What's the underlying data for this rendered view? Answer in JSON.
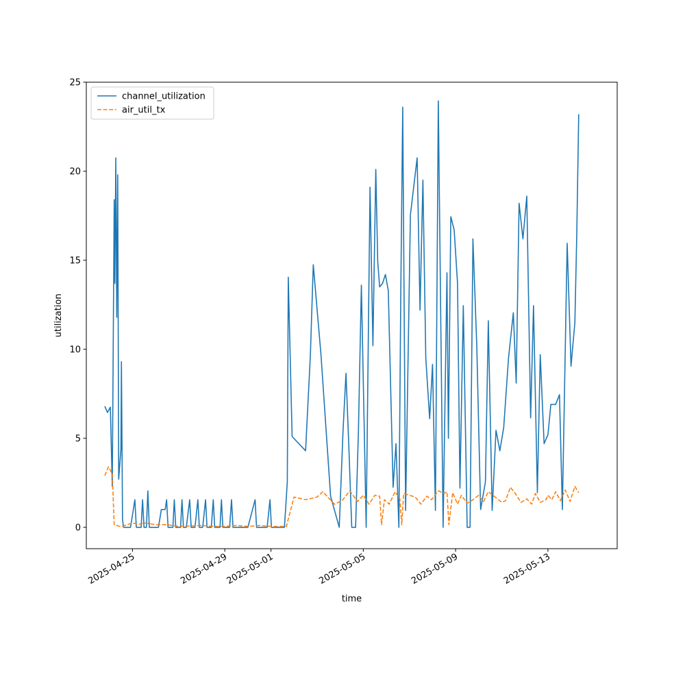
{
  "chart_data": {
    "type": "line",
    "title": "",
    "xlabel": "time",
    "ylabel": "utilization",
    "x_axis_type": "date",
    "xlim": [
      "2025-04-23T00:00",
      "2025-05-16T00:00"
    ],
    "ylim": [
      -1.2,
      25.0
    ],
    "yticks": [
      0,
      5,
      10,
      15,
      20,
      25
    ],
    "xticks": [
      "2025-04-25",
      "2025-04-29",
      "2025-05-01",
      "2025-05-05",
      "2025-05-09",
      "2025-05-13"
    ],
    "grid": false,
    "legend_position": "upper-left",
    "series": [
      {
        "name": "channel_utilization",
        "color": "#1f77b4",
        "dash": "solid",
        "points": [
          [
            "2025-04-23T19:12",
            6.8
          ],
          [
            "2025-04-23T22:00",
            6.45
          ],
          [
            "2025-04-24T01:00",
            6.75
          ],
          [
            "2025-04-24T03:00",
            2.3
          ],
          [
            "2025-04-24T05:00",
            18.4
          ],
          [
            "2025-04-24T05:40",
            13.7
          ],
          [
            "2025-04-24T06:40",
            20.75
          ],
          [
            "2025-04-24T07:40",
            11.8
          ],
          [
            "2025-04-24T08:40",
            19.8
          ],
          [
            "2025-04-24T09:40",
            2.7
          ],
          [
            "2025-04-24T12:00",
            4.4
          ],
          [
            "2025-04-24T12:30",
            9.3
          ],
          [
            "2025-04-24T13:40",
            0.45
          ],
          [
            "2025-04-24T14:40",
            0.0
          ],
          [
            "2025-04-24T20:00",
            0.0
          ],
          [
            "2025-04-24T22:00",
            0.0
          ],
          [
            "2025-04-25T02:30",
            1.55
          ],
          [
            "2025-04-25T04:00",
            0.0
          ],
          [
            "2025-04-25T09:00",
            0.0
          ],
          [
            "2025-04-25T10:30",
            1.55
          ],
          [
            "2025-04-25T12:00",
            0.0
          ],
          [
            "2025-04-25T14:30",
            0.0
          ],
          [
            "2025-04-25T16:00",
            2.05
          ],
          [
            "2025-04-25T17:30",
            0.0
          ],
          [
            "2025-04-26T03:00",
            0.0
          ],
          [
            "2025-04-26T06:00",
            1.0
          ],
          [
            "2025-04-26T10:00",
            1.0
          ],
          [
            "2025-04-26T11:30",
            1.55
          ],
          [
            "2025-04-26T13:00",
            0.0
          ],
          [
            "2025-04-26T18:00",
            0.0
          ],
          [
            "2025-04-26T19:30",
            1.55
          ],
          [
            "2025-04-26T21:00",
            0.0
          ],
          [
            "2025-04-27T02:00",
            0.0
          ],
          [
            "2025-04-27T03:30",
            1.55
          ],
          [
            "2025-04-27T05:00",
            0.0
          ],
          [
            "2025-04-27T08:00",
            0.0
          ],
          [
            "2025-04-27T11:30",
            1.55
          ],
          [
            "2025-04-27T13:00",
            0.0
          ],
          [
            "2025-04-27T17:00",
            0.0
          ],
          [
            "2025-04-27T20:00",
            1.55
          ],
          [
            "2025-04-27T21:30",
            0.0
          ],
          [
            "2025-04-28T01:00",
            0.0
          ],
          [
            "2025-04-28T04:00",
            1.55
          ],
          [
            "2025-04-28T05:30",
            0.0
          ],
          [
            "2025-04-28T10:00",
            0.0
          ],
          [
            "2025-04-28T12:00",
            1.55
          ],
          [
            "2025-04-28T13:30",
            0.0
          ],
          [
            "2025-04-28T19:00",
            0.0
          ],
          [
            "2025-04-28T20:30",
            1.55
          ],
          [
            "2025-04-28T22:00",
            0.0
          ],
          [
            "2025-04-29T05:00",
            0.0
          ],
          [
            "2025-04-29T07:00",
            1.55
          ],
          [
            "2025-04-29T08:30",
            0.0
          ],
          [
            "2025-04-29T13:00",
            0.0
          ],
          [
            "2025-04-29T16:00",
            0.0
          ],
          [
            "2025-04-29T19:00",
            0.0
          ],
          [
            "2025-04-30T00:00",
            0.0
          ],
          [
            "2025-04-30T07:30",
            1.55
          ],
          [
            "2025-04-30T09:00",
            0.0
          ],
          [
            "2025-04-30T15:00",
            0.0
          ],
          [
            "2025-04-30T20:00",
            0.0
          ],
          [
            "2025-04-30T23:00",
            1.55
          ],
          [
            "2025-05-01T00:30",
            0.0
          ],
          [
            "2025-05-01T14:00",
            0.0
          ],
          [
            "2025-05-01T17:00",
            2.55
          ],
          [
            "2025-05-01T18:00",
            14.05
          ],
          [
            "2025-05-01T19:30",
            10.7
          ],
          [
            "2025-05-01T22:00",
            5.1
          ],
          [
            "2025-05-02T12:00",
            4.3
          ],
          [
            "2025-05-02T17:00",
            9.7
          ],
          [
            "2025-05-02T20:00",
            14.75
          ],
          [
            "2025-05-03T04:00",
            9.7
          ],
          [
            "2025-05-03T14:00",
            1.75
          ],
          [
            "2025-05-03T23:00",
            0.0
          ],
          [
            "2025-05-04T03:00",
            5.5
          ],
          [
            "2025-05-04T06:00",
            8.65
          ],
          [
            "2025-05-04T09:00",
            4.5
          ],
          [
            "2025-05-04T12:00",
            0.0
          ],
          [
            "2025-05-04T16:00",
            0.0
          ],
          [
            "2025-05-04T19:00",
            5.5
          ],
          [
            "2025-05-04T22:00",
            13.6
          ],
          [
            "2025-05-05T01:00",
            5.5
          ],
          [
            "2025-05-05T03:00",
            0.0
          ],
          [
            "2025-05-05T07:00",
            19.1
          ],
          [
            "2025-05-05T10:00",
            10.2
          ],
          [
            "2025-05-05T13:00",
            20.1
          ],
          [
            "2025-05-05T15:00",
            14.95
          ],
          [
            "2025-05-05T17:00",
            13.5
          ],
          [
            "2025-05-05T20:00",
            13.7
          ],
          [
            "2025-05-05T23:00",
            14.2
          ],
          [
            "2025-05-06T02:00",
            13.3
          ],
          [
            "2025-05-06T07:00",
            2.25
          ],
          [
            "2025-05-06T10:00",
            4.7
          ],
          [
            "2025-05-06T13:00",
            0.0
          ],
          [
            "2025-05-06T15:00",
            13.2
          ],
          [
            "2025-05-06T17:00",
            23.6
          ],
          [
            "2025-05-06T20:00",
            0.95
          ],
          [
            "2025-05-07T01:00",
            17.55
          ],
          [
            "2025-05-07T08:00",
            20.75
          ],
          [
            "2025-05-07T11:00",
            12.2
          ],
          [
            "2025-05-07T14:00",
            19.5
          ],
          [
            "2025-05-07T17:00",
            9.5
          ],
          [
            "2025-05-07T21:00",
            6.1
          ],
          [
            "2025-05-08T00:00",
            9.15
          ],
          [
            "2025-05-08T03:00",
            0.95
          ],
          [
            "2025-05-08T06:00",
            23.95
          ],
          [
            "2025-05-08T11:00",
            0.0
          ],
          [
            "2025-05-08T15:00",
            14.3
          ],
          [
            "2025-05-08T16:30",
            5.0
          ],
          [
            "2025-05-08T19:00",
            17.45
          ],
          [
            "2025-05-08T22:30",
            16.7
          ],
          [
            "2025-05-09T02:00",
            13.7
          ],
          [
            "2025-05-09T04:30",
            2.2
          ],
          [
            "2025-05-09T08:00",
            12.45
          ],
          [
            "2025-05-09T12:00",
            0.0
          ],
          [
            "2025-05-09T15:00",
            0.0
          ],
          [
            "2025-05-09T18:00",
            16.2
          ],
          [
            "2025-05-09T22:00",
            10.2
          ],
          [
            "2025-05-10T02:00",
            1.0
          ],
          [
            "2025-05-10T07:00",
            2.55
          ],
          [
            "2025-05-10T10:00",
            11.6
          ],
          [
            "2025-05-10T14:00",
            0.95
          ],
          [
            "2025-05-10T18:00",
            5.45
          ],
          [
            "2025-05-10T22:00",
            4.3
          ],
          [
            "2025-05-11T02:00",
            5.6
          ],
          [
            "2025-05-11T07:00",
            9.5
          ],
          [
            "2025-05-11T12:00",
            12.05
          ],
          [
            "2025-05-11T15:00",
            8.1
          ],
          [
            "2025-05-11T18:00",
            18.2
          ],
          [
            "2025-05-11T22:00",
            16.2
          ],
          [
            "2025-05-12T02:00",
            18.6
          ],
          [
            "2025-05-12T06:00",
            6.15
          ],
          [
            "2025-05-12T09:00",
            12.45
          ],
          [
            "2025-05-12T13:00",
            1.95
          ],
          [
            "2025-05-12T16:00",
            9.7
          ],
          [
            "2025-05-12T20:00",
            4.7
          ],
          [
            "2025-05-13T00:00",
            5.2
          ],
          [
            "2025-05-13T03:00",
            6.9
          ],
          [
            "2025-05-13T08:00",
            6.9
          ],
          [
            "2025-05-13T12:00",
            7.45
          ],
          [
            "2025-05-13T15:00",
            1.0
          ],
          [
            "2025-05-13T20:00",
            15.95
          ],
          [
            "2025-05-14T00:00",
            9.05
          ],
          [
            "2025-05-14T04:00",
            11.5
          ],
          [
            "2025-05-14T06:00",
            16.5
          ],
          [
            "2025-05-14T08:00",
            23.2
          ]
        ]
      },
      {
        "name": "air_util_tx",
        "color": "#ff7f0e",
        "dash": "dashed",
        "points": [
          [
            "2025-04-23T19:12",
            2.9
          ],
          [
            "2025-04-23T23:00",
            3.4
          ],
          [
            "2025-04-24T03:00",
            3.0
          ],
          [
            "2025-04-24T05:00",
            0.15
          ],
          [
            "2025-04-24T11:00",
            0.05
          ],
          [
            "2025-04-24T16:00",
            0.1
          ],
          [
            "2025-04-25T00:00",
            0.25
          ],
          [
            "2025-04-25T06:00",
            0.15
          ],
          [
            "2025-04-25T12:00",
            0.25
          ],
          [
            "2025-04-26T00:00",
            0.15
          ],
          [
            "2025-04-26T12:00",
            0.15
          ],
          [
            "2025-04-27T00:00",
            0.05
          ],
          [
            "2025-04-28T00:00",
            0.1
          ],
          [
            "2025-04-28T12:00",
            0.05
          ],
          [
            "2025-04-29T00:00",
            0.05
          ],
          [
            "2025-04-29T12:00",
            0.1
          ],
          [
            "2025-04-30T00:00",
            0.05
          ],
          [
            "2025-04-30T12:00",
            0.1
          ],
          [
            "2025-05-01T00:00",
            0.05
          ],
          [
            "2025-05-01T16:00",
            0.05
          ],
          [
            "2025-05-02T00:00",
            1.7
          ],
          [
            "2025-05-02T12:00",
            1.55
          ],
          [
            "2025-05-03T00:00",
            1.7
          ],
          [
            "2025-05-03T06:00",
            2.0
          ],
          [
            "2025-05-03T18:00",
            1.3
          ],
          [
            "2025-05-04T02:00",
            1.5
          ],
          [
            "2025-05-04T10:00",
            2.05
          ],
          [
            "2025-05-04T18:00",
            1.45
          ],
          [
            "2025-05-05T00:00",
            1.8
          ],
          [
            "2025-05-05T06:00",
            1.3
          ],
          [
            "2025-05-05T12:00",
            1.8
          ],
          [
            "2025-05-05T17:00",
            1.75
          ],
          [
            "2025-05-05T19:00",
            0.15
          ],
          [
            "2025-05-05T22:00",
            1.55
          ],
          [
            "2025-05-06T03:00",
            1.3
          ],
          [
            "2025-05-06T09:00",
            2.0
          ],
          [
            "2025-05-06T14:00",
            1.6
          ],
          [
            "2025-05-06T16:00",
            0.15
          ],
          [
            "2025-05-06T18:00",
            1.9
          ],
          [
            "2025-05-07T06:00",
            1.7
          ],
          [
            "2025-05-07T12:00",
            1.3
          ],
          [
            "2025-05-07T18:00",
            1.75
          ],
          [
            "2025-05-07T23:00",
            1.55
          ],
          [
            "2025-05-08T06:00",
            2.05
          ],
          [
            "2025-05-08T12:00",
            1.9
          ],
          [
            "2025-05-08T15:00",
            2.0
          ],
          [
            "2025-05-08T17:00",
            0.15
          ],
          [
            "2025-05-08T21:00",
            1.95
          ],
          [
            "2025-05-09T02:00",
            1.3
          ],
          [
            "2025-05-09T06:00",
            1.8
          ],
          [
            "2025-05-09T12:00",
            1.35
          ],
          [
            "2025-05-09T18:00",
            1.55
          ],
          [
            "2025-05-10T00:00",
            1.8
          ],
          [
            "2025-05-10T05:00",
            1.45
          ],
          [
            "2025-05-10T10:00",
            2.0
          ],
          [
            "2025-05-10T16:00",
            1.75
          ],
          [
            "2025-05-11T00:00",
            1.4
          ],
          [
            "2025-05-11T04:00",
            1.5
          ],
          [
            "2025-05-11T09:00",
            2.25
          ],
          [
            "2025-05-11T14:00",
            1.9
          ],
          [
            "2025-05-11T20:00",
            1.4
          ],
          [
            "2025-05-12T02:00",
            1.6
          ],
          [
            "2025-05-12T07:00",
            1.3
          ],
          [
            "2025-05-12T11:00",
            1.9
          ],
          [
            "2025-05-12T16:00",
            1.4
          ],
          [
            "2025-05-12T22:00",
            1.55
          ],
          [
            "2025-05-13T00:00",
            1.8
          ],
          [
            "2025-05-13T04:00",
            1.55
          ],
          [
            "2025-05-13T08:00",
            2.0
          ],
          [
            "2025-05-13T13:00",
            1.5
          ],
          [
            "2025-05-13T18:00",
            2.1
          ],
          [
            "2025-05-13T23:00",
            1.45
          ],
          [
            "2025-05-14T04:00",
            2.3
          ],
          [
            "2025-05-14T08:00",
            1.95
          ]
        ]
      }
    ]
  }
}
